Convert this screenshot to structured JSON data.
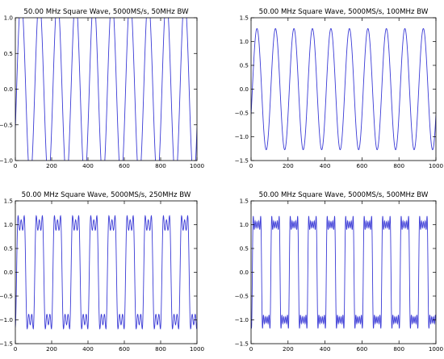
{
  "chart_data": [
    {
      "type": "line",
      "title": "50.00 MHz Square Wave, 5000MS/s, 50MHz BW",
      "bandwidth_mhz": 50,
      "series_color": "#3b3bd6",
      "xlim": [
        0,
        1000
      ],
      "ylim": [
        -1.0,
        1.0
      ],
      "xticks": [
        "0",
        "200",
        "400",
        "600",
        "800",
        "1000"
      ],
      "yticks": [
        "−1.0",
        "−0.5",
        "0.0",
        "0.5",
        "1.0"
      ],
      "grid": false
    },
    {
      "type": "line",
      "title": "50.00 MHz Square Wave, 5000MS/s, 100MHz BW",
      "bandwidth_mhz": 100,
      "series_color": "#3b3bd6",
      "xlim": [
        0,
        1000
      ],
      "ylim": [
        -1.5,
        1.5
      ],
      "xticks": [
        "0",
        "200",
        "400",
        "600",
        "800",
        "1000"
      ],
      "yticks": [
        "−1.5",
        "−1.0",
        "−0.5",
        "0.0",
        "0.5",
        "1.0",
        "1.5"
      ],
      "grid": false
    },
    {
      "type": "line",
      "title": "50.00 MHz Square Wave, 5000MS/s, 250MHz BW",
      "bandwidth_mhz": 250,
      "series_color": "#3b3bd6",
      "xlim": [
        0,
        1000
      ],
      "ylim": [
        -1.5,
        1.5
      ],
      "xticks": [
        "0",
        "200",
        "400",
        "600",
        "800",
        "1000"
      ],
      "yticks": [
        "−1.5",
        "−1.0",
        "−0.5",
        "0.0",
        "0.5",
        "1.0",
        "1.5"
      ],
      "grid": false
    },
    {
      "type": "line",
      "title": "50.00 MHz Square Wave, 5000MS/s, 500MHz BW",
      "bandwidth_mhz": 500,
      "series_color": "#3b3bd6",
      "xlim": [
        0,
        1000
      ],
      "ylim": [
        -1.5,
        1.5
      ],
      "xticks": [
        "0",
        "200",
        "400",
        "600",
        "800",
        "1000"
      ],
      "yticks": [
        "−1.5",
        "−1.0",
        "−0.5",
        "0.0",
        "0.5",
        "1.0",
        "1.5"
      ],
      "grid": false
    }
  ]
}
